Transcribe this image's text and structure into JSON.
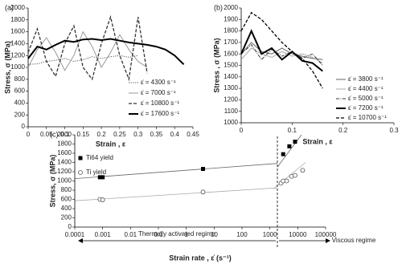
{
  "chart_data": [
    {
      "type": "line",
      "panel_label": "(a)",
      "x_label": "Strain , ε",
      "y_label": "Stress, σ (MPa)",
      "x": [
        0,
        0.025,
        0.05,
        0.075,
        0.1,
        0.125,
        0.15,
        0.175,
        0.2,
        0.225,
        0.25,
        0.275,
        0.3,
        0.325,
        0.35,
        0.375,
        0.4,
        0.425
      ],
      "xlim": [
        0,
        0.45
      ],
      "xticks": [
        0,
        0.05,
        0.1,
        0.15,
        0.2,
        0.25,
        0.3,
        0.35,
        0.4,
        0.45
      ],
      "ylim": [
        0,
        2000
      ],
      "yticks": [
        0,
        200,
        400,
        600,
        800,
        1000,
        1200,
        1400,
        1600,
        1800,
        2000
      ],
      "series": [
        {
          "name": "ε̇ = 4300 s⁻¹",
          "color": "#555555",
          "line_style": "dotted",
          "values": [
            1050,
            1060,
            1100,
            1120,
            1150,
            1100,
            1130,
            1180,
            1150,
            1180,
            1200,
            1170,
            1200,
            null,
            null,
            null,
            null,
            null
          ]
        },
        {
          "name": "ε̇ = 7000 s⁻¹",
          "color": "#999999",
          "line_style": "solid",
          "values": [
            1000,
            1300,
            1500,
            1250,
            950,
            1200,
            1600,
            1350,
            1000,
            1250,
            1550,
            1300,
            1100,
            1000,
            null,
            null,
            null,
            null
          ]
        },
        {
          "name": "ε̇ = 10800 s⁻¹",
          "color": "#333333",
          "line_style": "dashed",
          "values": [
            1250,
            1650,
            1100,
            850,
            1400,
            1700,
            1000,
            800,
            1400,
            1850,
            1200,
            800,
            1850,
            900,
            null,
            null,
            null,
            null
          ]
        },
        {
          "name": "ε̇ = 17600 s⁻¹",
          "color": "#000000",
          "line_style": "thick",
          "values": [
            1150,
            1350,
            1300,
            1380,
            1450,
            1430,
            1470,
            1480,
            1460,
            1480,
            1450,
            1420,
            1400,
            1380,
            1350,
            1300,
            1200,
            1050
          ]
        }
      ]
    },
    {
      "type": "line",
      "panel_label": "(b)",
      "x_label": "Strain , ε",
      "y_label": "Stress , σ (MPa)",
      "x": [
        0,
        0.02,
        0.04,
        0.06,
        0.08,
        0.1,
        0.12,
        0.14,
        0.16
      ],
      "xlim": [
        0,
        0.3
      ],
      "xticks": [
        0,
        0.1,
        0.2,
        0.3
      ],
      "ylim": [
        1000,
        2000
      ],
      "yticks": [
        1000,
        1100,
        1200,
        1300,
        1400,
        1500,
        1600,
        1700,
        1800,
        1900,
        2000
      ],
      "series": [
        {
          "name": "ε̇ = 3800 s⁻¹",
          "color": "#666666",
          "line_style": "solid",
          "values": [
            1600,
            1700,
            1620,
            1600,
            1650,
            1600,
            1580,
            1560,
            1550
          ]
        },
        {
          "name": "ε̇ = 4400 s⁻¹",
          "color": "#aaaaaa",
          "line_style": "solid",
          "values": [
            1550,
            1650,
            1600,
            1570,
            1620,
            1580,
            1600,
            1570,
            1520
          ]
        },
        {
          "name": "ε̇ = 5000 s⁻¹",
          "color": "#333333",
          "line_style": "dashdot",
          "values": [
            1600,
            1680,
            1550,
            1640,
            1580,
            1620,
            1560,
            1600,
            1500
          ]
        },
        {
          "name": "ε̇ = 7200 s⁻¹",
          "color": "#000000",
          "line_style": "thick",
          "values": [
            1600,
            1800,
            1600,
            1650,
            1550,
            1620,
            1540,
            1520,
            1450
          ]
        },
        {
          "name": "ε̇ = 10700 s⁻¹",
          "color": "#000000",
          "line_style": "dashed",
          "values": [
            1800,
            1960,
            1900,
            1800,
            1700,
            1620,
            1560,
            1450,
            1300
          ]
        }
      ]
    },
    {
      "type": "scatter",
      "panel_label": "(c)",
      "x_label": "Strain rate ,  ε̇ (s⁻¹)",
      "y_label": "Stress, σ (MPa)",
      "xscale": "log",
      "xlim": [
        0.0001,
        100000
      ],
      "xticks": [
        0.0001,
        0.001,
        0.01,
        0.1,
        1,
        10,
        100,
        1000,
        10000,
        100000
      ],
      "ylim": [
        0,
        2000
      ],
      "yticks": [
        0,
        200,
        400,
        600,
        800,
        1000,
        1200,
        1400,
        1600,
        1800,
        2000
      ],
      "annotations": [
        "Thermally activated regime",
        "Viscous regime"
      ],
      "series": [
        {
          "name": "Ti64 yield",
          "color": "#000000",
          "marker": "square",
          "x": [
            0.0008,
            0.001,
            4,
            3000,
            5000,
            8000
          ],
          "values": [
            1080,
            1080,
            1260,
            1580,
            1750,
            1850
          ]
        },
        {
          "name": "Ti yield",
          "color": "#555555",
          "marker": "open-circle",
          "x": [
            0.0008,
            0.001,
            4,
            2500,
            3000,
            4000,
            6000,
            8000,
            15000
          ],
          "values": [
            600,
            590,
            760,
            950,
            1000,
            1000,
            1100,
            1120,
            1230
          ]
        }
      ]
    }
  ]
}
